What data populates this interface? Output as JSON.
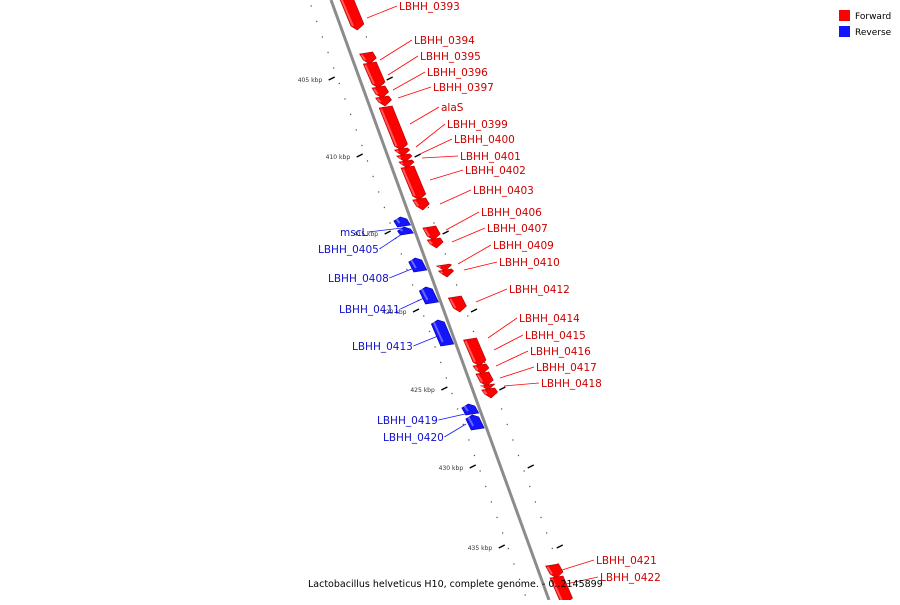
{
  "colors": {
    "forward": "#ff0000",
    "reverse": "#1414ff",
    "backbone": "#8c8c8c",
    "tick": "#000000"
  },
  "legend": {
    "forward_label": "Forward",
    "reverse_label": "Reverse"
  },
  "title": "Lactobacillus helveticus H10, complete genome. - 0..2145899",
  "ticks": [
    {
      "label": "405 kbp"
    },
    {
      "label": "410 kbp"
    },
    {
      "label": "415 kbp"
    },
    {
      "label": "420 kbp"
    },
    {
      "label": "425 kbp"
    },
    {
      "label": "430 kbp"
    },
    {
      "label": "435 kbp"
    }
  ],
  "genes": [
    {
      "name": "LBHH_0393",
      "strand": "forward"
    },
    {
      "name": "LBHH_0394",
      "strand": "forward"
    },
    {
      "name": "LBHH_0395",
      "strand": "forward"
    },
    {
      "name": "LBHH_0396",
      "strand": "forward"
    },
    {
      "name": "LBHH_0397",
      "strand": "forward"
    },
    {
      "name": "alaS",
      "strand": "forward"
    },
    {
      "name": "LBHH_0399",
      "strand": "forward"
    },
    {
      "name": "LBHH_0400",
      "strand": "forward"
    },
    {
      "name": "LBHH_0401",
      "strand": "forward"
    },
    {
      "name": "LBHH_0402",
      "strand": "forward"
    },
    {
      "name": "LBHH_0403",
      "strand": "forward"
    },
    {
      "name": "LBHH_0406",
      "strand": "forward"
    },
    {
      "name": "LBHH_0407",
      "strand": "forward"
    },
    {
      "name": "LBHH_0409",
      "strand": "forward"
    },
    {
      "name": "LBHH_0410",
      "strand": "forward"
    },
    {
      "name": "LBHH_0412",
      "strand": "forward"
    },
    {
      "name": "LBHH_0414",
      "strand": "forward"
    },
    {
      "name": "LBHH_0415",
      "strand": "forward"
    },
    {
      "name": "LBHH_0416",
      "strand": "forward"
    },
    {
      "name": "LBHH_0417",
      "strand": "forward"
    },
    {
      "name": "LBHH_0418",
      "strand": "forward"
    },
    {
      "name": "LBHH_0421",
      "strand": "forward"
    },
    {
      "name": "LBHH_0422",
      "strand": "forward"
    },
    {
      "name": "mscL",
      "strand": "reverse"
    },
    {
      "name": "LBHH_0405",
      "strand": "reverse"
    },
    {
      "name": "LBHH_0408",
      "strand": "reverse"
    },
    {
      "name": "LBHH_0411",
      "strand": "reverse"
    },
    {
      "name": "LBHH_0413",
      "strand": "reverse"
    },
    {
      "name": "LBHH_0419",
      "strand": "reverse"
    },
    {
      "name": "LBHH_0420",
      "strand": "reverse"
    }
  ]
}
